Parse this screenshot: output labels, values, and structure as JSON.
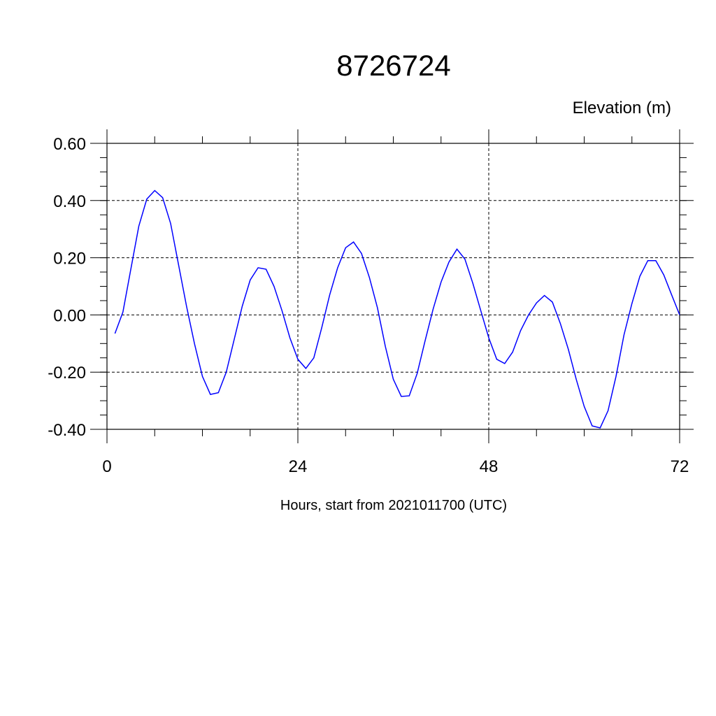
{
  "chart_data": {
    "type": "line",
    "title": "8726724",
    "units_label": "Elevation (m)",
    "xlabel": "Hours, start from 2021011700 (UTC)",
    "xlim": [
      0,
      72
    ],
    "ylim": [
      -0.4,
      0.6
    ],
    "xticks": [
      0,
      24,
      48,
      72
    ],
    "xtick_labels": [
      "0",
      "24",
      "48",
      "72"
    ],
    "yticks": [
      -0.4,
      -0.2,
      0.0,
      0.2,
      0.4,
      0.6
    ],
    "ytick_labels": [
      "-0.40",
      "-0.20",
      "0.00",
      "0.20",
      "0.40",
      "0.60"
    ],
    "grid": true,
    "line_color": "#0000ff",
    "series": [
      {
        "x": [
          1,
          2,
          3,
          4,
          5,
          6,
          7,
          8,
          9,
          10,
          11,
          12,
          13,
          14,
          15,
          16,
          17,
          18,
          19,
          20,
          21,
          22,
          23,
          24,
          25,
          26,
          27,
          28,
          29,
          30,
          31,
          32,
          33,
          34,
          35,
          36,
          37,
          38,
          39,
          40,
          41,
          42,
          43,
          44,
          45,
          46,
          47,
          48,
          49,
          50,
          51,
          52,
          53,
          54,
          55,
          56,
          57,
          58,
          59,
          60,
          61,
          62,
          63,
          64,
          65,
          66,
          67,
          68,
          69,
          70,
          71,
          72
        ],
        "values": [
          -0.065,
          0.01,
          0.16,
          0.31,
          0.405,
          0.435,
          0.41,
          0.32,
          0.175,
          0.03,
          -0.1,
          -0.215,
          -0.278,
          -0.272,
          -0.2,
          -0.085,
          0.03,
          0.122,
          0.165,
          0.16,
          0.1,
          0.015,
          -0.08,
          -0.155,
          -0.187,
          -0.15,
          -0.045,
          0.07,
          0.165,
          0.235,
          0.255,
          0.215,
          0.13,
          0.025,
          -0.11,
          -0.225,
          -0.285,
          -0.283,
          -0.205,
          -0.09,
          0.02,
          0.115,
          0.185,
          0.23,
          0.195,
          0.11,
          0.015,
          -0.08,
          -0.155,
          -0.17,
          -0.13,
          -0.055,
          0.0,
          0.042,
          0.068,
          0.045,
          -0.03,
          -0.12,
          -0.225,
          -0.32,
          -0.388,
          -0.395,
          -0.335,
          -0.215,
          -0.07,
          0.04,
          0.135,
          0.19,
          0.19,
          0.14,
          0.07,
          0.0
        ]
      }
    ]
  }
}
